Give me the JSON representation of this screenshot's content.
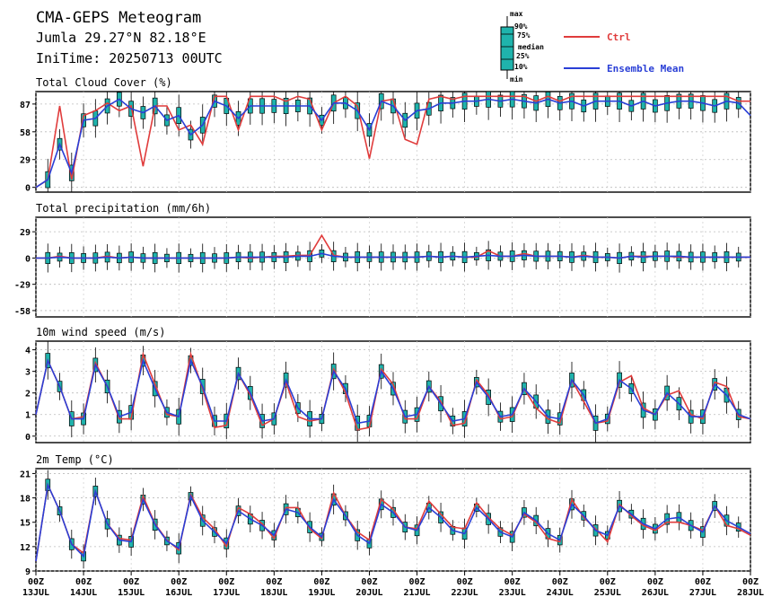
{
  "header": {
    "title": "CMA-GEPS Meteogram",
    "location": "Jumla 29.27°N 82.18°E",
    "init_time": "IniTime: 20250713 00UTC"
  },
  "legend": {
    "box_labels": [
      "max",
      "90%",
      "75%",
      "median",
      "25%",
      "10%",
      "min"
    ],
    "ctrl_label": "Ctrl",
    "mean_label": "Ensemble Mean",
    "ctrl_color": "#e03c3c",
    "mean_color": "#2a3fd6",
    "box_color": "#1fb3ac"
  },
  "x_axis": {
    "tick_top": [
      "00Z",
      "00Z",
      "00Z",
      "00Z",
      "00Z",
      "00Z",
      "00Z",
      "00Z",
      "00Z",
      "00Z",
      "00Z",
      "00Z",
      "00Z",
      "00Z",
      "00Z",
      "00Z"
    ],
    "tick_bottom": [
      "13JUL",
      "14JUL",
      "15JUL",
      "16JUL",
      "17JUL",
      "18JUL",
      "19JUL",
      "20JUL",
      "21JUL",
      "22JUL",
      "23JUL",
      "24JUL",
      "25JUL",
      "26JUL",
      "27JUL",
      "28JUL"
    ]
  },
  "chart_data": [
    {
      "type": "box",
      "title": "Total Cloud Cover (%)",
      "ylim": [
        -5,
        100
      ],
      "yticks": [
        0,
        29,
        58,
        87
      ],
      "ctrl": [
        0,
        8,
        85,
        8,
        75,
        80,
        88,
        80,
        85,
        22,
        85,
        85,
        60,
        65,
        45,
        95,
        95,
        60,
        95,
        95,
        95,
        90,
        95,
        92,
        60,
        88,
        95,
        85,
        30,
        90,
        92,
        50,
        45,
        92,
        95,
        92,
        95,
        95,
        95,
        95,
        95,
        95,
        90,
        95,
        90,
        95,
        95,
        95,
        95,
        95,
        95,
        95,
        95,
        95,
        95,
        95,
        95,
        95,
        95,
        90,
        90
      ],
      "mean": [
        0,
        8,
        45,
        15,
        70,
        72,
        85,
        92,
        82,
        78,
        85,
        70,
        75,
        55,
        65,
        90,
        85,
        72,
        85,
        85,
        85,
        85,
        85,
        85,
        70,
        88,
        88,
        80,
        60,
        90,
        85,
        70,
        80,
        82,
        88,
        88,
        90,
        90,
        92,
        90,
        92,
        90,
        88,
        92,
        88,
        90,
        85,
        90,
        90,
        90,
        85,
        90,
        85,
        88,
        90,
        90,
        88,
        85,
        90,
        88,
        75
      ]
    },
    {
      "type": "box",
      "title": "Total precipitation (mm/6h)",
      "ylim": [
        -65,
        45
      ],
      "yticks": [
        -58,
        -29,
        0,
        29
      ],
      "ctrl": [
        0,
        0,
        2,
        0,
        0,
        0,
        2,
        0,
        1,
        0,
        0,
        0,
        0,
        0,
        0,
        0,
        0,
        1,
        0,
        1,
        2,
        2,
        3,
        3,
        25,
        3,
        1,
        1,
        1,
        1,
        1,
        1,
        1,
        2,
        1,
        2,
        1,
        1,
        8,
        2,
        2,
        5,
        2,
        2,
        2,
        1,
        3,
        1,
        1,
        0,
        2,
        2,
        2,
        2,
        1,
        1,
        1,
        1,
        1,
        1,
        1
      ],
      "mean": [
        0,
        0,
        1,
        0,
        0,
        0,
        1,
        0,
        1,
        0,
        0,
        0,
        0,
        0,
        0,
        0,
        0,
        1,
        1,
        1,
        1,
        1,
        2,
        2,
        5,
        2,
        1,
        1,
        1,
        1,
        1,
        1,
        1,
        2,
        1,
        2,
        1,
        2,
        3,
        2,
        2,
        3,
        2,
        2,
        2,
        1,
        2,
        1,
        1,
        0,
        2,
        1,
        2,
        2,
        2,
        1,
        1,
        1,
        1,
        1,
        1
      ]
    },
    {
      "type": "box",
      "title": "10m wind speed (m/s)",
      "ylim": [
        -0.3,
        4.4
      ],
      "yticks": [
        0,
        1,
        2,
        3,
        4
      ],
      "ctrl": [
        1.0,
        3.5,
        2.3,
        0.8,
        0.9,
        3.4,
        2.3,
        0.8,
        0.8,
        3.8,
        2.4,
        1.0,
        0.9,
        3.8,
        2.2,
        0.4,
        0.5,
        2.9,
        1.9,
        0.5,
        0.8,
        2.5,
        0.9,
        0.7,
        0.8,
        3.1,
        2.0,
        0.3,
        0.4,
        3.1,
        2.4,
        0.8,
        0.8,
        2.3,
        1.6,
        0.5,
        0.6,
        2.6,
        1.9,
        0.8,
        0.9,
        2.2,
        1.3,
        0.8,
        0.6,
        2.6,
        1.6,
        0.6,
        0.7,
        2.5,
        2.8,
        1.3,
        1.0,
        1.9,
        2.1,
        1.0,
        0.8,
        2.5,
        2.3,
        0.9,
        0.8
      ],
      "mean": [
        1.0,
        3.5,
        2.3,
        0.8,
        0.8,
        3.3,
        2.3,
        0.9,
        1.1,
        3.5,
        2.2,
        1.1,
        0.9,
        3.5,
        2.3,
        0.7,
        0.7,
        2.9,
        2.0,
        0.7,
        0.8,
        2.6,
        1.3,
        0.8,
        0.8,
        3.0,
        2.2,
        0.6,
        0.7,
        3.0,
        2.2,
        0.9,
        1.0,
        2.3,
        1.5,
        0.7,
        0.8,
        2.5,
        1.8,
        0.9,
        1.0,
        2.2,
        1.6,
        0.9,
        0.8,
        2.6,
        1.9,
        0.6,
        0.8,
        2.6,
        2.2,
        1.2,
        1.0,
        2.0,
        1.5,
        0.9,
        0.9,
        2.4,
        1.9,
        1.0,
        0.8
      ]
    },
    {
      "type": "box",
      "title": "2m Temp (°C)",
      "ylim": [
        9,
        21.6
      ],
      "yticks": [
        9,
        12,
        15,
        18,
        21
      ],
      "ctrl": [
        10.2,
        19.6,
        16.4,
        12.3,
        11.2,
        18.8,
        14.8,
        13.0,
        12.8,
        18.2,
        14.8,
        12.8,
        11.6,
        18.4,
        15.6,
        14.2,
        12.0,
        16.8,
        16.0,
        14.8,
        13.0,
        16.8,
        16.8,
        14.2,
        13.0,
        18.6,
        15.8,
        13.8,
        12.8,
        17.8,
        16.6,
        14.4,
        14.2,
        17.6,
        16.0,
        14.4,
        14.2,
        17.4,
        15.6,
        14.2,
        13.4,
        16.0,
        15.0,
        13.0,
        12.6,
        17.8,
        15.6,
        14.2,
        12.6,
        17.2,
        15.8,
        14.6,
        14.0,
        15.0,
        15.0,
        14.6,
        14.0,
        17.0,
        14.6,
        14.2,
        13.4
      ],
      "mean": [
        10.2,
        19.6,
        16.4,
        12.3,
        10.8,
        18.8,
        14.8,
        12.8,
        12.6,
        17.8,
        14.7,
        12.7,
        11.8,
        18.2,
        15.2,
        13.8,
        12.4,
        16.4,
        15.4,
        14.6,
        13.4,
        16.6,
        16.2,
        14.4,
        13.2,
        17.8,
        15.8,
        13.4,
        12.4,
        17.2,
        16.2,
        14.4,
        14.0,
        16.8,
        15.6,
        14.0,
        13.6,
        16.8,
        15.4,
        13.8,
        13.2,
        16.2,
        15.2,
        13.6,
        12.8,
        17.2,
        15.8,
        14.0,
        13.4,
        17.0,
        16.0,
        14.8,
        14.2,
        15.4,
        15.6,
        14.6,
        13.8,
        17.0,
        15.2,
        14.4,
        13.6
      ]
    }
  ]
}
